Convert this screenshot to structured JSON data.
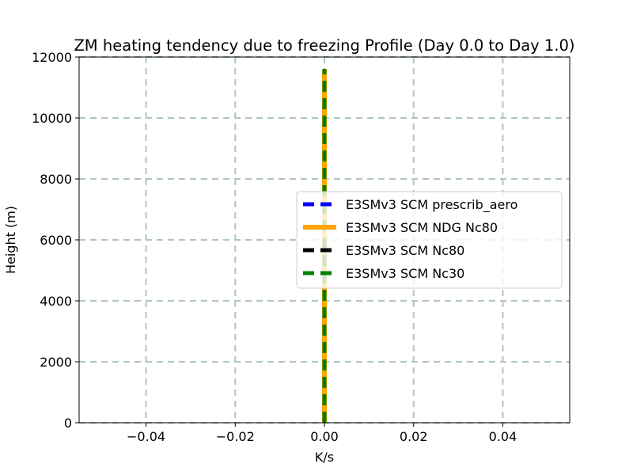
{
  "chart_data": {
    "type": "line",
    "title": "ZM heating tendency due to freezing Profile (Day 0.0 to Day 1.0)",
    "xlabel": "K/s",
    "ylabel": "Height (m)",
    "xlim": [
      -0.055,
      0.055
    ],
    "ylim": [
      0,
      12000
    ],
    "xticks": [
      -0.04,
      -0.02,
      0.0,
      0.02,
      0.04
    ],
    "xtick_labels": [
      "−0.04",
      "−0.02",
      "0.00",
      "0.02",
      "0.04"
    ],
    "yticks": [
      0,
      2000,
      4000,
      6000,
      8000,
      10000,
      12000
    ],
    "ytick_labels": [
      "0",
      "2000",
      "4000",
      "6000",
      "8000",
      "10000",
      "12000"
    ],
    "grid": true,
    "legend_position": "center-right",
    "series": [
      {
        "name": "E3SMv3 SCM prescrib_aero",
        "color": "#0000ff",
        "style": "dashed",
        "x": [
          0,
          0
        ],
        "y": [
          0,
          11600
        ]
      },
      {
        "name": "E3SMv3 SCM NDG Nc80",
        "color": "#ffa500",
        "style": "solid",
        "x": [
          0,
          0
        ],
        "y": [
          0,
          11600
        ]
      },
      {
        "name": "E3SMv3 SCM Nc80",
        "color": "#000000",
        "style": "dashed",
        "x": [
          0,
          0
        ],
        "y": [
          0,
          11600
        ]
      },
      {
        "name": "E3SMv3 SCM Nc30",
        "color": "#008000",
        "style": "dashed",
        "x": [
          0,
          0
        ],
        "y": [
          0,
          11600
        ]
      }
    ]
  }
}
